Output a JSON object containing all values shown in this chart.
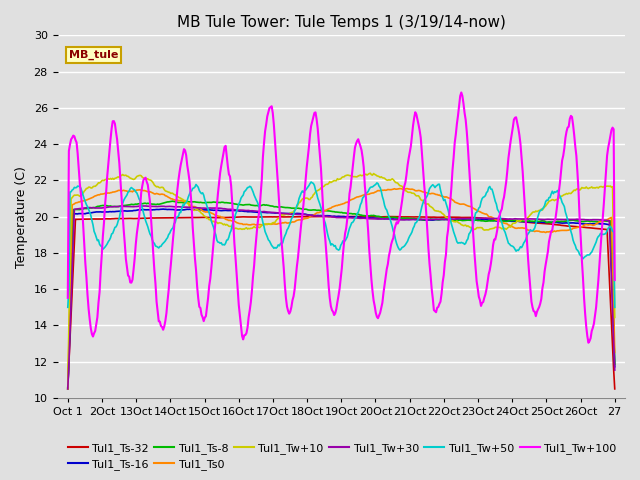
{
  "title": "MB Tule Tower: Tule Temps 1 (3/19/14-now)",
  "ylabel": "Temperature (C)",
  "ylim": [
    10,
    30
  ],
  "yticks": [
    10,
    12,
    14,
    16,
    18,
    20,
    22,
    24,
    26,
    28,
    30
  ],
  "background_color": "#e0e0e0",
  "plot_bg_color": "#e0e0e0",
  "grid_color": "#ffffff",
  "legend_label": "MB_tule",
  "legend_bg": "#ffffc0",
  "legend_border": "#c8a000",
  "series": [
    {
      "name": "Tul1_Ts-32",
      "color": "#cc0000",
      "lw": 1.2
    },
    {
      "name": "Tul1_Ts-16",
      "color": "#0000cc",
      "lw": 1.2
    },
    {
      "name": "Tul1_Ts-8",
      "color": "#00bb00",
      "lw": 1.2
    },
    {
      "name": "Tul1_Ts0",
      "color": "#ff8800",
      "lw": 1.2
    },
    {
      "name": "Tul1_Tw+10",
      "color": "#cccc00",
      "lw": 1.2
    },
    {
      "name": "Tul1_Tw+30",
      "color": "#9900aa",
      "lw": 1.2
    },
    {
      "name": "Tul1_Tw+50",
      "color": "#00cccc",
      "lw": 1.2
    },
    {
      "name": "Tul1_Tw+100",
      "color": "#ff00ff",
      "lw": 1.5
    }
  ],
  "xtick_labels": [
    "Oct 1",
    "2Oct",
    "13Oct",
    "14Oct",
    "15Oct",
    "16Oct",
    "17Oct",
    "18Oct",
    "19Oct",
    "20Oct",
    "21Oct",
    "22Oct",
    "23Oct",
    "24Oct",
    "25Oct",
    "26Oct",
    "27"
  ],
  "xtick_positions": [
    0,
    1,
    2,
    3,
    4,
    5,
    6,
    7,
    8,
    9,
    10,
    11,
    12,
    13,
    14,
    15,
    16
  ],
  "title_fontsize": 11,
  "axis_label_fontsize": 9,
  "tick_fontsize": 8,
  "legend_fontsize": 8
}
